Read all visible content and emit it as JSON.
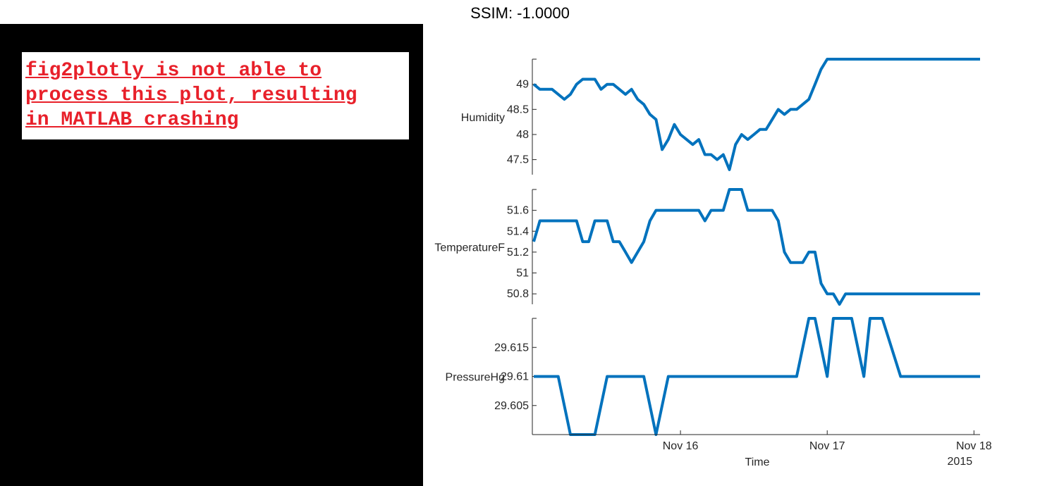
{
  "figure_title": "SSIM: -1.0000",
  "note": {
    "lines": [
      "fig2plotly is not able to",
      "process this plot, resulting",
      "in MATLAB crashing"
    ],
    "color": "#e8202a"
  },
  "line_color": "#0072bd",
  "chart_data": [
    {
      "type": "line",
      "ylabel": "Humidity",
      "yticks": [
        47.5,
        48,
        48.5,
        49
      ],
      "ytick_labels": [
        "47.5",
        "48",
        "48.5",
        "49"
      ],
      "ylim": [
        47.2,
        49.5
      ],
      "xlim": [
        0,
        73
      ],
      "x": [
        0,
        1,
        3,
        5,
        6,
        7,
        8,
        9,
        10,
        11,
        12,
        13,
        15,
        16,
        17,
        18,
        19,
        20,
        21,
        22,
        23,
        24,
        25,
        26,
        27,
        28,
        29,
        30,
        31,
        32,
        33,
        34,
        35,
        36,
        37,
        38,
        39,
        40,
        41,
        42,
        43,
        44,
        45,
        46,
        47,
        48,
        49,
        50,
        51,
        52,
        53,
        54,
        55,
        56,
        57,
        58,
        59,
        60,
        61,
        62,
        63,
        64,
        65,
        66,
        67,
        68,
        69,
        70,
        71,
        72,
        73
      ],
      "y": [
        49,
        48.9,
        48.9,
        48.7,
        48.8,
        49.0,
        49.1,
        49.1,
        49.1,
        48.9,
        49.0,
        49.0,
        48.8,
        48.9,
        48.7,
        48.6,
        48.4,
        48.3,
        47.7,
        47.9,
        48.2,
        48.0,
        47.9,
        47.8,
        47.9,
        47.6,
        47.6,
        47.5,
        47.6,
        47.3,
        47.8,
        48.0,
        47.9,
        48.0,
        48.1,
        48.1,
        48.3,
        48.5,
        48.4,
        48.5,
        48.5,
        48.6,
        48.7,
        49.0,
        49.3,
        49.5,
        49.5,
        49.5,
        49.5,
        49.5,
        49.5,
        49.5,
        49.5,
        49.5,
        49.5,
        49.5,
        49.5,
        49.5,
        49.5,
        49.5,
        49.5,
        49.5,
        49.5,
        49.5,
        49.5,
        49.5,
        49.5,
        49.5,
        49.5,
        49.5,
        49.5
      ]
    },
    {
      "type": "line",
      "ylabel": "TemperatureF",
      "yticks": [
        50.8,
        51,
        51.2,
        51.4,
        51.6
      ],
      "ytick_labels": [
        "50.8",
        "51",
        "51.2",
        "51.4",
        "51.6"
      ],
      "ylim": [
        50.7,
        51.8
      ],
      "xlim": [
        0,
        73
      ],
      "x": [
        0,
        1,
        3,
        5,
        7,
        8,
        9,
        10,
        11,
        12,
        13,
        14,
        15,
        16,
        17,
        18,
        19,
        20,
        21,
        22,
        23,
        24,
        25,
        26,
        27,
        28,
        29,
        30,
        31,
        32,
        33,
        34,
        35,
        36,
        37,
        38,
        39,
        40,
        41,
        42,
        43,
        44,
        45,
        46,
        47,
        48,
        49,
        50,
        51,
        52,
        53,
        54,
        55,
        56,
        57,
        58,
        59,
        60,
        61,
        62,
        63,
        64,
        65,
        66,
        67,
        68,
        69,
        70,
        71,
        72,
        73
      ],
      "y": [
        51.3,
        51.5,
        51.5,
        51.5,
        51.5,
        51.3,
        51.3,
        51.5,
        51.5,
        51.5,
        51.3,
        51.3,
        51.2,
        51.1,
        51.2,
        51.3,
        51.5,
        51.6,
        51.6,
        51.6,
        51.6,
        51.6,
        51.6,
        51.6,
        51.6,
        51.5,
        51.6,
        51.6,
        51.6,
        51.8,
        51.8,
        51.8,
        51.6,
        51.6,
        51.6,
        51.6,
        51.6,
        51.5,
        51.2,
        51.1,
        51.1,
        51.1,
        51.2,
        51.2,
        50.9,
        50.8,
        50.8,
        50.7,
        50.8,
        50.8,
        50.8,
        50.8,
        50.8,
        50.8,
        50.8,
        50.8,
        50.8,
        50.8,
        50.8,
        50.8,
        50.8,
        50.8,
        50.8,
        50.8,
        50.8,
        50.8,
        50.8,
        50.8,
        50.8,
        50.8,
        50.8
      ]
    },
    {
      "type": "line",
      "ylabel": "PressureHg",
      "yticks": [
        29.605,
        29.61,
        29.615
      ],
      "ytick_labels": [
        "29.605",
        "29.61",
        "29.615"
      ],
      "ylim": [
        29.6,
        29.62
      ],
      "xlim": [
        0,
        73
      ],
      "x": [
        0,
        4,
        6,
        10,
        12,
        18,
        20,
        22,
        43,
        45,
        46,
        48,
        49,
        52,
        54,
        55,
        57,
        60,
        73
      ],
      "y": [
        29.61,
        29.61,
        29.6,
        29.6,
        29.61,
        29.61,
        29.6,
        29.61,
        29.61,
        29.62,
        29.62,
        29.61,
        29.62,
        29.62,
        29.61,
        29.62,
        29.62,
        29.61,
        29.61
      ],
      "xticks": [
        24,
        48,
        72
      ],
      "xtick_labels": [
        "Nov 16",
        "Nov 17",
        "Nov 18"
      ],
      "xlabel": "Time",
      "x_secondary_label": "2015"
    }
  ]
}
